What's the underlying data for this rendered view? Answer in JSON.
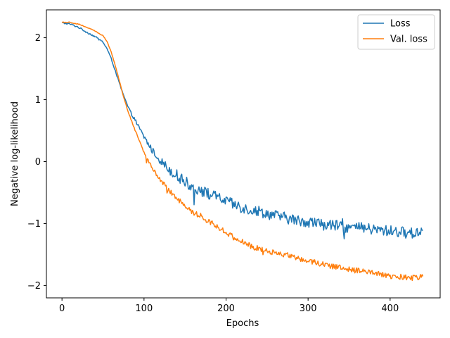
{
  "chart_data": {
    "type": "line",
    "title": "",
    "xlabel": "Epochs",
    "ylabel": "Negative log-likelihood",
    "xlim": [
      -19,
      461
    ],
    "ylim": [
      -2.2,
      2.45
    ],
    "xticks": [
      0,
      100,
      200,
      300,
      400
    ],
    "yticks": [
      -2,
      -1,
      0,
      1,
      2
    ],
    "xtick_labels": [
      "0",
      "100",
      "200",
      "300",
      "400"
    ],
    "ytick_labels": [
      "−2",
      "−1",
      "0",
      "1",
      "2"
    ],
    "grid": false,
    "legend_position": "top-right",
    "series": [
      {
        "name": "Loss",
        "color": "#1f77b4",
        "x": [
          0,
          10,
          20,
          30,
          40,
          50,
          55,
          60,
          65,
          70,
          75,
          80,
          85,
          90,
          95,
          100,
          105,
          110,
          115,
          120,
          130,
          140,
          150,
          160,
          170,
          180,
          190,
          200,
          210,
          220,
          230,
          240,
          250,
          260,
          270,
          280,
          290,
          300,
          310,
          320,
          330,
          340,
          350,
          360,
          370,
          380,
          390,
          400,
          410,
          420,
          430,
          440
        ],
        "y": [
          2.24,
          2.22,
          2.17,
          2.09,
          2.02,
          1.93,
          1.82,
          1.66,
          1.47,
          1.26,
          1.07,
          0.9,
          0.76,
          0.65,
          0.52,
          0.4,
          0.29,
          0.18,
          0.1,
          0.02,
          -0.12,
          -0.22,
          -0.32,
          -0.42,
          -0.47,
          -0.53,
          -0.58,
          -0.64,
          -0.7,
          -0.74,
          -0.78,
          -0.8,
          -0.84,
          -0.87,
          -0.9,
          -0.93,
          -0.96,
          -0.97,
          -0.99,
          -1.02,
          -1.03,
          -1.05,
          -1.06,
          -1.07,
          -1.08,
          -1.1,
          -1.11,
          -1.12,
          -1.13,
          -1.15,
          -1.16,
          -1.1
        ],
        "noise": 0.09
      },
      {
        "name": "Val. loss",
        "color": "#ff7f0e",
        "x": [
          0,
          10,
          20,
          30,
          40,
          50,
          55,
          60,
          65,
          70,
          75,
          80,
          85,
          90,
          95,
          100,
          105,
          110,
          115,
          120,
          130,
          140,
          150,
          160,
          170,
          180,
          190,
          200,
          210,
          220,
          230,
          240,
          250,
          260,
          270,
          280,
          290,
          300,
          310,
          320,
          330,
          340,
          350,
          360,
          370,
          380,
          390,
          400,
          410,
          420,
          430,
          440
        ],
        "y": [
          2.25,
          2.25,
          2.22,
          2.17,
          2.11,
          2.03,
          1.94,
          1.77,
          1.55,
          1.3,
          1.05,
          0.83,
          0.65,
          0.48,
          0.32,
          0.15,
          0.02,
          -0.1,
          -0.2,
          -0.3,
          -0.46,
          -0.58,
          -0.72,
          -0.82,
          -0.9,
          -0.97,
          -1.05,
          -1.14,
          -1.23,
          -1.3,
          -1.36,
          -1.41,
          -1.44,
          -1.47,
          -1.5,
          -1.53,
          -1.57,
          -1.6,
          -1.63,
          -1.66,
          -1.69,
          -1.72,
          -1.74,
          -1.76,
          -1.78,
          -1.8,
          -1.83,
          -1.85,
          -1.86,
          -1.87,
          -1.88,
          -1.86
        ],
        "noise": 0.045
      }
    ]
  }
}
